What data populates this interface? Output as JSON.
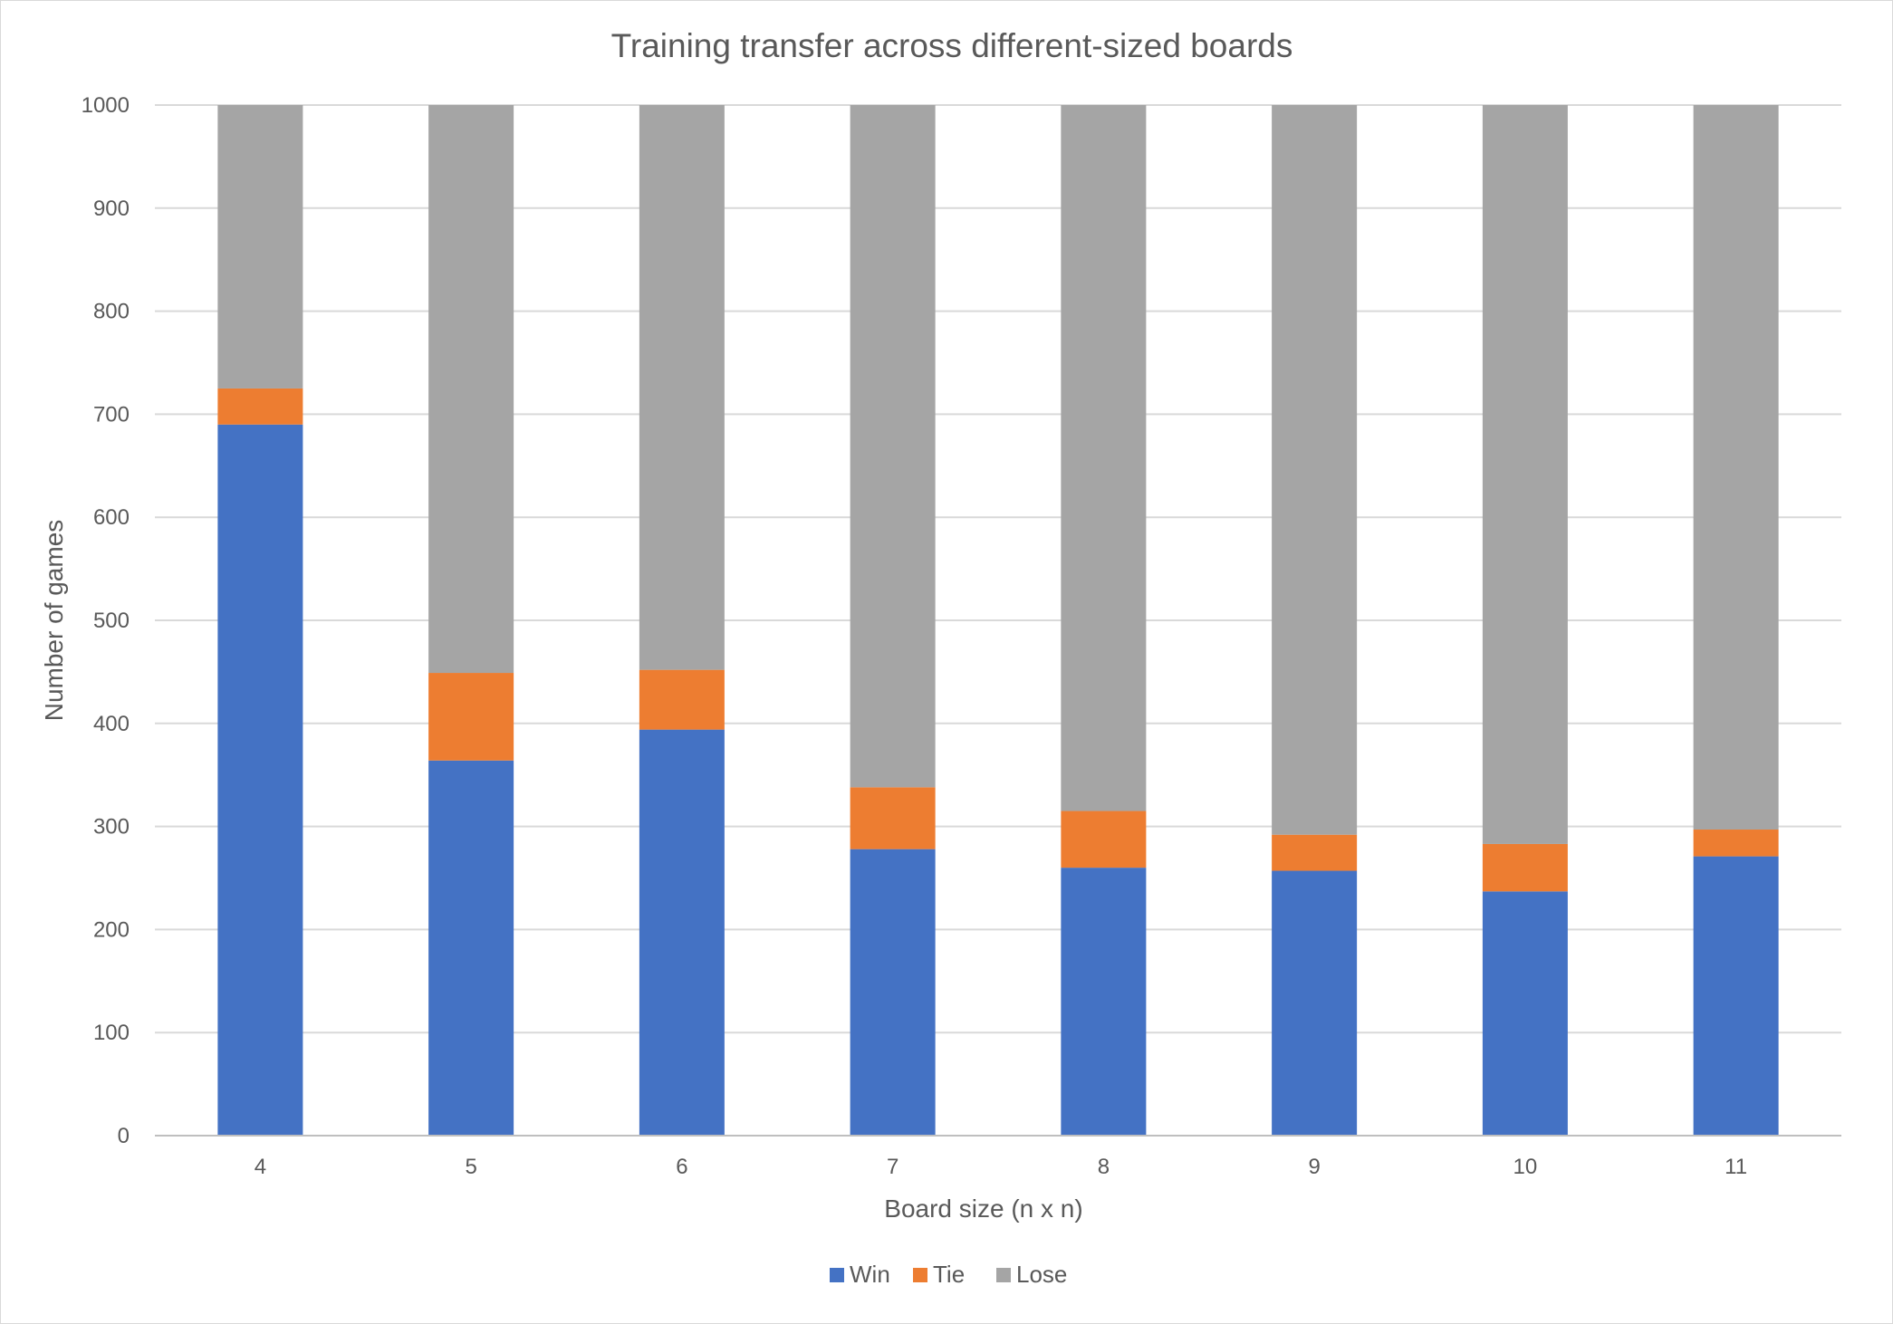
{
  "chart_data": {
    "type": "bar",
    "stacked": true,
    "title": "Training transfer across different-sized boards",
    "xlabel": "Board size (n x n)",
    "ylabel": "Number of games",
    "ylim": [
      0,
      1000
    ],
    "yticks": [
      0,
      100,
      200,
      300,
      400,
      500,
      600,
      700,
      800,
      900,
      1000
    ],
    "categories": [
      "4",
      "5",
      "6",
      "7",
      "8",
      "9",
      "10",
      "11"
    ],
    "series": [
      {
        "name": "Win",
        "color": "#4472c4",
        "values": [
          690,
          364,
          394,
          278,
          260,
          257,
          237,
          271
        ]
      },
      {
        "name": "Tie",
        "color": "#ed7d31",
        "values": [
          35,
          85,
          58,
          60,
          55,
          35,
          46,
          26
        ]
      },
      {
        "name": "Lose",
        "color": "#a5a5a5",
        "values": [
          275,
          551,
          548,
          662,
          685,
          708,
          717,
          703
        ]
      }
    ],
    "grid": true,
    "legend_position": "bottom"
  }
}
